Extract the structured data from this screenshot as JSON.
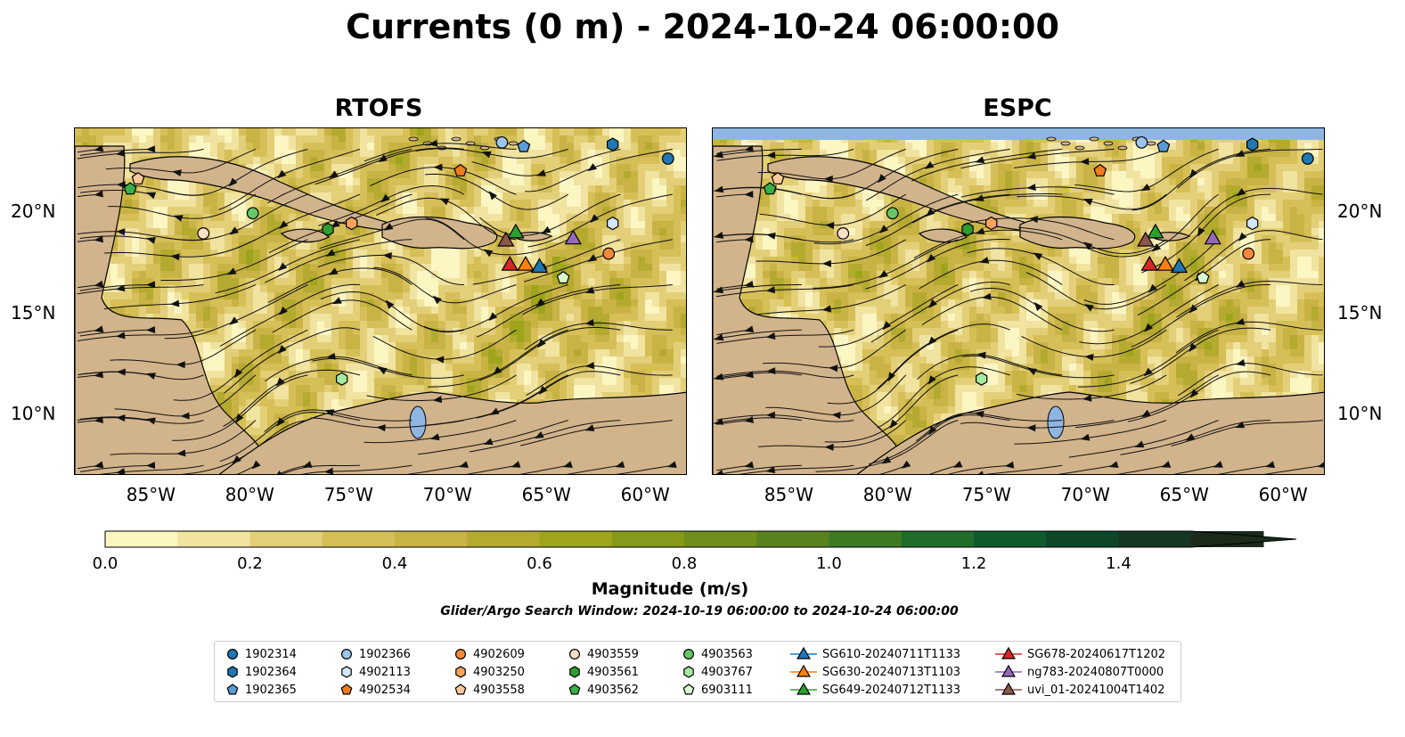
{
  "title": "Currents (0 m) - 2024-10-24 06:00:00",
  "panels": [
    {
      "title": "RTOFS"
    },
    {
      "title": "ESPC"
    }
  ],
  "axes": {
    "lon_ticks": [
      "85°W",
      "80°W",
      "75°W",
      "70°W",
      "65°W",
      "60°W"
    ],
    "lat_ticks": [
      "20°N",
      "15°N",
      "10°N"
    ]
  },
  "colorbar": {
    "label": "Magnitude (m/s)",
    "ticks": [
      "0.0",
      "0.2",
      "0.4",
      "0.6",
      "0.8",
      "1.0",
      "1.2",
      "1.4"
    ],
    "range": [
      0.0,
      1.6
    ],
    "extend": "max",
    "colors": [
      "#fcf6c3",
      "#f1e3a0",
      "#e3cf78",
      "#d6bf57",
      "#c9b345",
      "#b5aa30",
      "#9ea51d",
      "#86991a",
      "#6f8e1c",
      "#58821f",
      "#3e7a24",
      "#226c2a",
      "#105a2d",
      "#0d4727",
      "#143622",
      "#1a2b1a"
    ]
  },
  "search_window": "Glider/Argo Search Window: 2024-10-19 06:00:00 to 2024-10-24 06:00:00",
  "colors": {
    "land": "#d2b48c",
    "water_body": "#8fb6e3",
    "river": "#a6bfdc"
  },
  "legend": [
    {
      "label": "1902314",
      "marker": "circle",
      "color": "#1f77b4"
    },
    {
      "label": "1902364",
      "marker": "hexagon",
      "color": "#1f77b4"
    },
    {
      "label": "1902365",
      "marker": "pentagon",
      "color": "#5b9bd5"
    },
    {
      "label": "1902366",
      "marker": "circle",
      "color": "#9ec4ec"
    },
    {
      "label": "4902113",
      "marker": "hexagon",
      "color": "#d3e7f7"
    },
    {
      "label": "4902534",
      "marker": "pentagon",
      "color": "#f07c1f"
    },
    {
      "label": "4902609",
      "marker": "circle",
      "color": "#f5883a"
    },
    {
      "label": "4903250",
      "marker": "hexagon",
      "color": "#f8a559"
    },
    {
      "label": "4903558",
      "marker": "pentagon",
      "color": "#fdc99a"
    },
    {
      "label": "4903559",
      "marker": "circle",
      "color": "#fde0c7"
    },
    {
      "label": "4903561",
      "marker": "hexagon",
      "color": "#2e9e2e"
    },
    {
      "label": "4903562",
      "marker": "pentagon",
      "color": "#39b04a"
    },
    {
      "label": "4903563",
      "marker": "circle",
      "color": "#66c766"
    },
    {
      "label": "4903767",
      "marker": "hexagon",
      "color": "#a5e8a0"
    },
    {
      "label": "6903111",
      "marker": "pentagon",
      "color": "#d8f8d2"
    },
    {
      "label": "SG610-20240711T1133",
      "marker": "triangle",
      "color": "#1f77b4"
    },
    {
      "label": "SG630-20240713T1103",
      "marker": "triangle",
      "color": "#ff7f0e"
    },
    {
      "label": "SG649-20240712T1133",
      "marker": "triangle",
      "color": "#2ca02c"
    },
    {
      "label": "SG678-20240617T1202",
      "marker": "triangle",
      "color": "#d62728"
    },
    {
      "label": "ng783-20240807T0000",
      "marker": "triangle",
      "color": "#9467bd"
    },
    {
      "label": "uvi_01-20241004T1402",
      "marker": "triangle",
      "color": "#8c564b"
    }
  ],
  "observations": [
    {
      "id": "1902314",
      "lon": -59.0,
      "lat": 22.7
    },
    {
      "id": "1902364",
      "lon": -61.8,
      "lat": 23.4
    },
    {
      "id": "1902365",
      "lon": -66.3,
      "lat": 23.3
    },
    {
      "id": "1902366",
      "lon": -67.4,
      "lat": 23.5
    },
    {
      "id": "4902113",
      "lon": -61.8,
      "lat": 19.5
    },
    {
      "id": "4902534",
      "lon": -69.5,
      "lat": 22.1
    },
    {
      "id": "4902609",
      "lon": -62.0,
      "lat": 18.0
    },
    {
      "id": "4903250",
      "lon": -75.0,
      "lat": 19.5
    },
    {
      "id": "4903558",
      "lon": -85.8,
      "lat": 21.7
    },
    {
      "id": "4903559",
      "lon": -82.5,
      "lat": 19.0
    },
    {
      "id": "4903561",
      "lon": -76.2,
      "lat": 19.2
    },
    {
      "id": "4903562",
      "lon": -86.2,
      "lat": 21.2
    },
    {
      "id": "4903563",
      "lon": -80.0,
      "lat": 20.0
    },
    {
      "id": "4903767",
      "lon": -75.5,
      "lat": 11.8
    },
    {
      "id": "6903111",
      "lon": -64.3,
      "lat": 16.8
    },
    {
      "id": "SG610-20240711T1133",
      "lon": -65.5,
      "lat": 17.3
    },
    {
      "id": "SG630-20240713T1103",
      "lon": -66.2,
      "lat": 17.4
    },
    {
      "id": "SG649-20240712T1133",
      "lon": -66.7,
      "lat": 19.0
    },
    {
      "id": "SG678-20240617T1202",
      "lon": -67.0,
      "lat": 17.4
    },
    {
      "id": "ng783-20240807T0000",
      "lon": -63.8,
      "lat": 18.7
    },
    {
      "id": "uvi_01-20241004T1402",
      "lon": -67.2,
      "lat": 18.6
    }
  ]
}
